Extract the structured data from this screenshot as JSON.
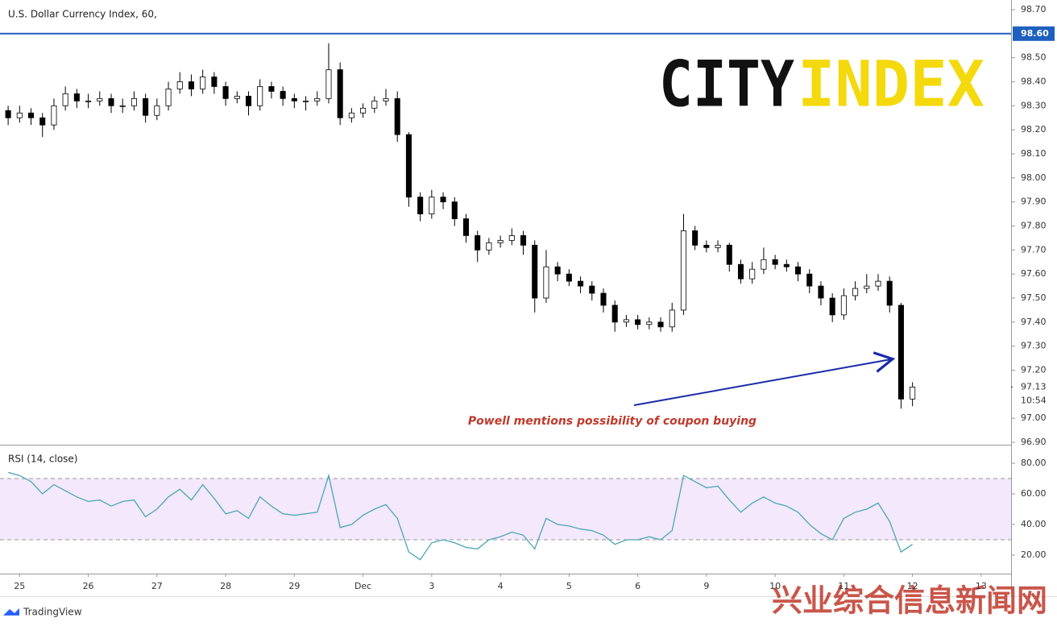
{
  "chart_data": [
    {
      "type": "candlestick",
      "title": "U.S. Dollar Currency Index, 60,",
      "logo": [
        "CITY",
        "INDEX"
      ],
      "annotation": "Powell mentions possibility of coupon buying",
      "categories": [
        null,
        "25",
        null,
        null,
        null,
        null,
        null,
        "26",
        null,
        null,
        null,
        null,
        null,
        "27",
        null,
        null,
        null,
        null,
        null,
        "28",
        null,
        null,
        null,
        null,
        null,
        "29",
        null,
        null,
        null,
        null,
        null,
        "Dec",
        null,
        null,
        null,
        null,
        null,
        "3",
        null,
        null,
        null,
        null,
        null,
        "4",
        null,
        null,
        null,
        null,
        null,
        "5",
        null,
        null,
        null,
        null,
        null,
        "6",
        null,
        null,
        null,
        null,
        null,
        "9",
        null,
        null,
        null,
        null,
        null,
        "10",
        null,
        null,
        null,
        null,
        null,
        "11",
        null,
        null,
        null,
        null,
        null,
        "12",
        null,
        null,
        null,
        null,
        null,
        "13"
      ],
      "open": [
        98.28,
        98.25,
        98.27,
        98.25,
        98.22,
        98.3,
        98.35,
        98.32,
        98.32,
        98.33,
        98.3,
        98.3,
        98.33,
        98.26,
        98.3,
        98.37,
        98.4,
        98.37,
        98.42,
        98.38,
        98.33,
        98.34,
        98.3,
        98.38,
        98.36,
        98.33,
        98.32,
        98.32,
        98.33,
        98.45,
        98.25,
        98.27,
        98.29,
        98.32,
        98.33,
        98.18,
        97.92,
        97.85,
        97.92,
        97.9,
        97.83,
        97.76,
        97.7,
        97.73,
        97.74,
        97.76,
        97.72,
        97.5,
        97.63,
        97.6,
        97.57,
        97.55,
        97.52,
        97.47,
        97.4,
        97.41,
        97.39,
        97.4,
        97.38,
        97.45,
        97.78,
        97.72,
        97.71,
        97.72,
        97.64,
        97.58,
        97.62,
        97.66,
        97.64,
        97.63,
        97.6,
        97.55,
        97.5,
        97.43,
        97.51,
        97.54,
        97.55,
        97.57,
        97.47,
        97.08,
        null,
        null,
        null,
        null,
        null,
        null
      ],
      "high": [
        98.3,
        98.3,
        98.29,
        98.27,
        98.33,
        98.38,
        98.37,
        98.35,
        98.36,
        98.35,
        98.33,
        98.36,
        98.35,
        98.33,
        98.4,
        98.44,
        98.43,
        98.45,
        98.44,
        98.4,
        98.36,
        98.36,
        98.41,
        98.4,
        98.38,
        98.35,
        98.34,
        98.36,
        98.56,
        98.48,
        98.29,
        98.31,
        98.34,
        98.37,
        98.36,
        98.19,
        97.94,
        97.95,
        97.94,
        97.92,
        97.85,
        97.78,
        97.75,
        97.76,
        97.79,
        97.78,
        97.74,
        97.7,
        97.65,
        97.62,
        97.59,
        97.57,
        97.54,
        97.49,
        97.43,
        97.43,
        97.42,
        97.42,
        97.48,
        97.85,
        97.8,
        97.74,
        97.74,
        97.73,
        97.66,
        97.65,
        97.71,
        97.68,
        97.66,
        97.65,
        97.62,
        97.57,
        97.52,
        97.54,
        97.57,
        97.6,
        97.6,
        97.59,
        97.48,
        97.15,
        null,
        null,
        null,
        null,
        null,
        null
      ],
      "low": [
        98.22,
        98.23,
        98.22,
        98.17,
        98.2,
        98.28,
        98.29,
        98.29,
        98.3,
        98.27,
        98.27,
        98.28,
        98.23,
        98.24,
        98.28,
        98.35,
        98.34,
        98.35,
        98.35,
        98.3,
        98.31,
        98.26,
        98.28,
        98.33,
        98.3,
        98.29,
        98.28,
        98.3,
        98.31,
        98.22,
        98.23,
        98.25,
        98.27,
        98.3,
        98.15,
        97.88,
        97.82,
        97.83,
        97.87,
        97.8,
        97.73,
        97.65,
        97.68,
        97.71,
        97.72,
        97.68,
        97.44,
        97.48,
        97.57,
        97.55,
        97.52,
        97.49,
        97.44,
        97.36,
        97.38,
        97.37,
        97.37,
        97.36,
        97.36,
        97.43,
        97.7,
        97.69,
        97.69,
        97.61,
        97.56,
        97.56,
        97.6,
        97.62,
        97.61,
        97.57,
        97.52,
        97.47,
        97.4,
        97.41,
        97.49,
        97.52,
        97.53,
        97.44,
        97.04,
        97.05,
        null,
        null,
        null,
        null,
        null,
        null
      ],
      "close": [
        98.25,
        98.27,
        98.25,
        98.22,
        98.3,
        98.35,
        98.32,
        98.32,
        98.33,
        98.3,
        98.3,
        98.33,
        98.26,
        98.3,
        98.37,
        98.4,
        98.37,
        98.42,
        98.38,
        98.33,
        98.34,
        98.3,
        98.38,
        98.36,
        98.33,
        98.32,
        98.32,
        98.33,
        98.45,
        98.25,
        98.27,
        98.29,
        98.32,
        98.33,
        98.18,
        97.92,
        97.85,
        97.92,
        97.9,
        97.83,
        97.76,
        97.7,
        97.73,
        97.74,
        97.76,
        97.72,
        97.5,
        97.63,
        97.6,
        97.57,
        97.55,
        97.52,
        97.47,
        97.4,
        97.41,
        97.39,
        97.4,
        97.38,
        97.45,
        97.78,
        97.72,
        97.71,
        97.72,
        97.64,
        97.58,
        97.62,
        97.66,
        97.64,
        97.63,
        97.6,
        97.55,
        97.5,
        97.43,
        97.51,
        97.54,
        97.55,
        97.57,
        97.47,
        97.08,
        97.13,
        null,
        null,
        null,
        null,
        null,
        null
      ],
      "up_color": "#ffffff",
      "down_color": "#000000",
      "ylim": [
        96.89,
        98.74
      ],
      "yticks": [
        {
          "value": 98.7,
          "label": "98.70"
        },
        {
          "value": 98.5,
          "label": "98.50"
        },
        {
          "value": 98.4,
          "label": "98.40"
        },
        {
          "value": 98.3,
          "label": "98.30"
        },
        {
          "value": 98.2,
          "label": "98.20"
        },
        {
          "value": 98.1,
          "label": "98.10"
        },
        {
          "value": 98.0,
          "label": "98.00"
        },
        {
          "value": 97.9,
          "label": "97.90"
        },
        {
          "value": 97.8,
          "label": "97.80"
        },
        {
          "value": 97.7,
          "label": "97.70"
        },
        {
          "value": 97.6,
          "label": "97.60"
        },
        {
          "value": 97.5,
          "label": "97.50"
        },
        {
          "value": 97.4,
          "label": "97.40"
        },
        {
          "value": 97.3,
          "label": "97.30"
        },
        {
          "value": 97.2,
          "label": "97.20"
        },
        {
          "value": 97.0,
          "label": "97.00"
        },
        {
          "value": 96.9,
          "label": "96.90"
        }
      ],
      "hline": {
        "value": 98.6,
        "label": "98.60"
      },
      "hline_color": "#1e5fbf",
      "last_price": 97.13,
      "countdown": "10:54"
    },
    {
      "type": "line",
      "title": "RSI (14, close)",
      "color": "#4aa6b5",
      "values": [
        74,
        72,
        68,
        60,
        66,
        62,
        58,
        55,
        56,
        52,
        55,
        56,
        45,
        50,
        58,
        63,
        56,
        66,
        57,
        47,
        49,
        44,
        58,
        52,
        47,
        46,
        47,
        48,
        72,
        38,
        40,
        46,
        50,
        53,
        44,
        22,
        17,
        28,
        30,
        28,
        25,
        24,
        30,
        32,
        35,
        33,
        24,
        44,
        40,
        39,
        37,
        36,
        33,
        27,
        30,
        30,
        32,
        30,
        36,
        72,
        68,
        64,
        65,
        56,
        48,
        54,
        58,
        54,
        52,
        48,
        40,
        34,
        30,
        44,
        48,
        50,
        54,
        42,
        22,
        27,
        null,
        null,
        null,
        null,
        null,
        null
      ],
      "ylim": [
        7.9,
        91.6
      ],
      "yticks": [
        {
          "value": 80,
          "label": "80.00"
        },
        {
          "value": 60,
          "label": "60.00"
        },
        {
          "value": 40,
          "label": "40.00"
        },
        {
          "value": 20,
          "label": "20.00"
        }
      ],
      "bands": [
        70,
        30
      ],
      "band_color": "#f4e8fc"
    }
  ],
  "footer": "TradingView",
  "watermark": "兴业综合信息新闻网"
}
